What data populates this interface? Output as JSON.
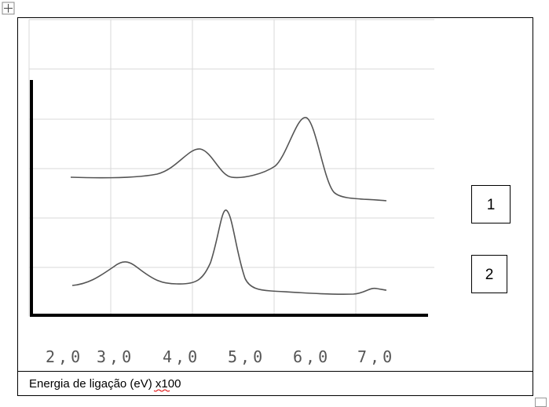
{
  "figure": {
    "x_tick_labels": [
      "2,0",
      "3,0",
      "4,0",
      "5,0",
      "6,0",
      "7,0"
    ],
    "series_labels": [
      "1",
      "2"
    ]
  },
  "caption": "Energia de ligação (eV) x100"
}
